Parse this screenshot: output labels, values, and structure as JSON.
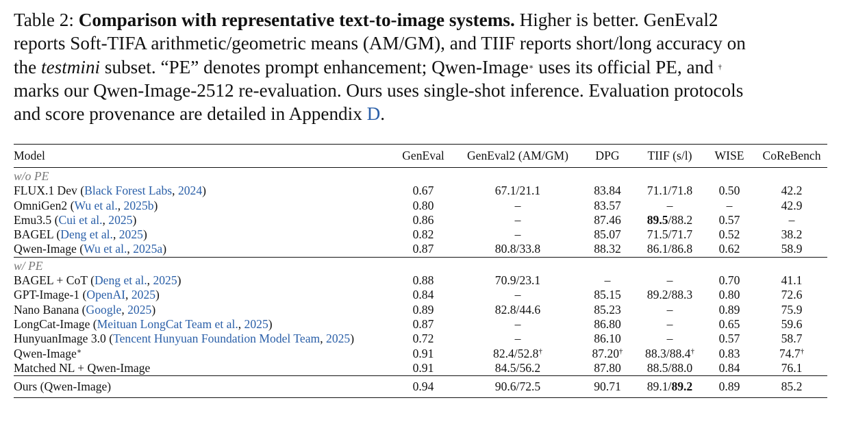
{
  "caption": {
    "label": "Table 2:",
    "title": "Comparison with representative text-to-image systems.",
    "line1_tail": "Higher is better. GenEval2",
    "line2": "reports Soft-TIFA arithmetic/geometric means (AM/GM), and TIIF reports short/long accuracy on",
    "line3_pre": "the",
    "line3_italic": "testmini",
    "line3_post": "subset. “PE” denotes prompt enhancement; Qwen-Image",
    "line3_star": "∗",
    "line3_post2": "uses its official PE, and",
    "line3_dagger": "†",
    "line4": "marks our Qwen-Image-2512 re-evaluation. Ours uses single-shot inference. Evaluation protocols",
    "line5_pre": "and score provenance are detailed in Appendix",
    "line5_link": "D",
    "line5_post": "."
  },
  "columns": [
    "Model",
    "GenEval",
    "GenEval2 (AM/GM)",
    "DPG",
    "TIIF (s/l)",
    "WISE",
    "CoReBench"
  ],
  "sections": {
    "wo_pe": "w/o PE",
    "w_pe": "w/ PE"
  },
  "rows": {
    "r1": {
      "name": "FLUX.1 Dev (",
      "cite": "Black Forest Labs",
      "sep": ", ",
      "year": "2024",
      "close": ")",
      "geneval": "0.67",
      "geneval2": "67.1/21.1",
      "dpg": "83.84",
      "tiif": "71.1/71.8",
      "wise": "0.50",
      "core": "42.2"
    },
    "r2": {
      "name": "OmniGen2 (",
      "cite": "Wu et al.",
      "sep": ", ",
      "year": "2025b",
      "close": ")",
      "geneval": "0.80",
      "geneval2": "–",
      "dpg": "83.57",
      "tiif": "–",
      "wise": "–",
      "core": "42.9"
    },
    "r3": {
      "name": "Emu3.5 (",
      "cite": "Cui et al.",
      "sep": ", ",
      "year": "2025",
      "close": ")",
      "geneval": "0.86",
      "geneval2": "–",
      "dpg": "87.46",
      "tiif_a": "89.5",
      "tiif_b": "/88.2",
      "wise": "0.57",
      "core": "–"
    },
    "r4": {
      "name": "BAGEL (",
      "cite": "Deng et al.",
      "sep": ", ",
      "year": "2025",
      "close": ")",
      "geneval": "0.82",
      "geneval2": "–",
      "dpg": "85.07",
      "tiif": "71.5/71.7",
      "wise": "0.52",
      "core": "38.2"
    },
    "r5": {
      "name": "Qwen-Image (",
      "cite": "Wu et al.",
      "sep": ", ",
      "year": "2025a",
      "close": ")",
      "geneval": "0.87",
      "geneval2": "80.8/33.8",
      "dpg": "88.32",
      "tiif": "86.1/86.8",
      "wise": "0.62",
      "core": "58.9"
    },
    "r6": {
      "name": "BAGEL + CoT (",
      "cite": "Deng et al.",
      "sep": ", ",
      "year": "2025",
      "close": ")",
      "geneval": "0.88",
      "geneval2": "70.9/23.1",
      "dpg": "–",
      "tiif": "–",
      "wise": "0.70",
      "core": "41.1"
    },
    "r7": {
      "name": "GPT-Image-1 (",
      "cite": "OpenAI",
      "sep": ", ",
      "year": "2025",
      "close": ")",
      "geneval": "0.84",
      "geneval2": "–",
      "dpg": "85.15",
      "tiif": "89.2/88.3",
      "wise": "0.80",
      "core": "72.6"
    },
    "r8": {
      "name": "Nano Banana (",
      "cite": "Google",
      "sep": ", ",
      "year": "2025",
      "close": ")",
      "geneval": "0.89",
      "geneval2": "82.8/44.6",
      "dpg": "85.23",
      "tiif": "–",
      "wise": "0.89",
      "core": "75.9"
    },
    "r9": {
      "name": "LongCat-Image (",
      "cite": "Meituan LongCat Team et al.",
      "sep": ", ",
      "year": "2025",
      "close": ")",
      "geneval": "0.87",
      "geneval2": "–",
      "dpg": "86.80",
      "tiif": "–",
      "wise": "0.65",
      "core": "59.6"
    },
    "r10": {
      "name": "HunyuanImage 3.0 (",
      "cite": "Tencent Hunyuan Foundation Model Team",
      "sep": ", ",
      "year": "2025",
      "close": ")",
      "geneval": "0.72",
      "geneval2": "–",
      "dpg": "86.10",
      "tiif": "–",
      "wise": "0.57",
      "core": "58.7"
    },
    "r11": {
      "name": "Qwen-Image",
      "star": "∗",
      "geneval": "0.91",
      "geneval2": "82.4/52.8",
      "dpg": "87.20",
      "tiif": "88.3/88.4",
      "wise": "0.83",
      "core": "74.7",
      "dagger": "†"
    },
    "r12": {
      "name": "Matched NL + Qwen-Image",
      "geneval": "0.91",
      "geneval2": "84.5/56.2",
      "dpg": "87.80",
      "tiif": "88.5/88.0",
      "wise": "0.84",
      "core": "76.1"
    },
    "ours": {
      "name": "Ours (Qwen-Image)",
      "geneval": "0.94",
      "geneval2": "90.6/72.5",
      "dpg": "90.71",
      "tiif_a": "89.1/",
      "tiif_b": "89.2",
      "wise": "0.89",
      "core": "85.2"
    }
  }
}
